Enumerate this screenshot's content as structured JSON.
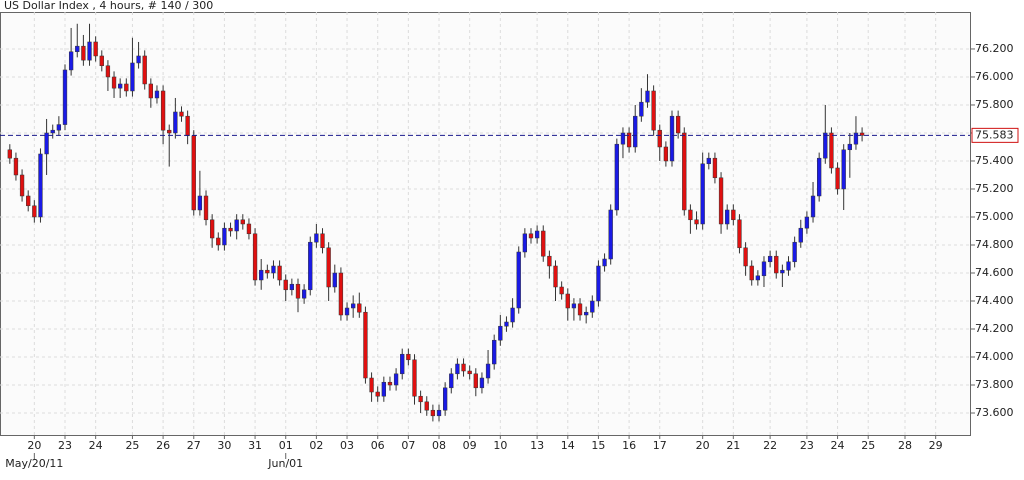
{
  "chart_data": {
    "type": "candlestick",
    "title": "US Dollar Index , 4 hours, # 140 / 300",
    "up_color": "#1a1ae6",
    "down_color": "#e01010",
    "grid": true,
    "ylim": [
      73.443,
      76.464
    ],
    "yticks": [
      {
        "value": 73.6,
        "label": "73.600"
      },
      {
        "value": 73.8,
        "label": "73.800"
      },
      {
        "value": 74.0,
        "label": "74.000"
      },
      {
        "value": 74.2,
        "label": "74.200"
      },
      {
        "value": 74.4,
        "label": "74.400"
      },
      {
        "value": 74.6,
        "label": "74.600"
      },
      {
        "value": 74.8,
        "label": "74.800"
      },
      {
        "value": 75.0,
        "label": "75.000"
      },
      {
        "value": 75.2,
        "label": "75.200"
      },
      {
        "value": 75.4,
        "label": "75.400"
      },
      {
        "value": 75.6,
        "label": "75.600"
      },
      {
        "value": 75.8,
        "label": "75.800"
      },
      {
        "value": 76.0,
        "label": "76.000"
      },
      {
        "value": 76.2,
        "label": "76.200"
      }
    ],
    "xlim": [
      -1.6,
      156.6
    ],
    "xticks": [
      {
        "value": 4,
        "label": "20"
      },
      {
        "value": 9,
        "label": "23"
      },
      {
        "value": 14,
        "label": "24"
      },
      {
        "value": 20,
        "label": "25"
      },
      {
        "value": 25,
        "label": "26"
      },
      {
        "value": 30,
        "label": "27"
      },
      {
        "value": 35,
        "label": "30"
      },
      {
        "value": 40,
        "label": "31"
      },
      {
        "value": 45,
        "label": "01"
      },
      {
        "value": 50,
        "label": "02"
      },
      {
        "value": 55,
        "label": "03"
      },
      {
        "value": 60,
        "label": "06"
      },
      {
        "value": 65,
        "label": "07"
      },
      {
        "value": 70,
        "label": "08"
      },
      {
        "value": 75,
        "label": "09"
      },
      {
        "value": 80,
        "label": "10"
      },
      {
        "value": 86,
        "label": "13"
      },
      {
        "value": 91,
        "label": "14"
      },
      {
        "value": 96,
        "label": "15"
      },
      {
        "value": 101,
        "label": "16"
      },
      {
        "value": 106,
        "label": "17"
      },
      {
        "value": 113,
        "label": "20"
      },
      {
        "value": 118,
        "label": "21"
      },
      {
        "value": 124,
        "label": "22"
      },
      {
        "value": 130,
        "label": "23"
      },
      {
        "value": 135,
        "label": "24"
      },
      {
        "value": 140,
        "label": "25"
      },
      {
        "value": 146,
        "label": "28"
      },
      {
        "value": 151,
        "label": "29"
      }
    ],
    "date_labels": [
      {
        "value": 4,
        "label": "May/20/11"
      },
      {
        "value": 45,
        "label": "Jun/01"
      }
    ],
    "last_price": {
      "value": 75.583,
      "label": "75.583"
    },
    "open": [
      75.48,
      75.42,
      75.3,
      75.15,
      75.08,
      75.0,
      75.45,
      75.6,
      75.62,
      75.66,
      76.05,
      76.18,
      76.22,
      76.12,
      76.25,
      76.15,
      76.08,
      76.0,
      75.92,
      75.95,
      75.9,
      76.1,
      76.15,
      75.95,
      75.85,
      75.9,
      75.62,
      75.6,
      75.75,
      75.72,
      75.58,
      75.05,
      75.15,
      74.98,
      74.85,
      74.8,
      74.92,
      74.9,
      74.98,
      74.95,
      74.88,
      74.55,
      74.62,
      74.6,
      74.65,
      74.55,
      74.48,
      74.52,
      74.42,
      74.48,
      74.82,
      74.88,
      74.78,
      74.5,
      74.6,
      74.3,
      74.35,
      74.38,
      74.32,
      73.85,
      73.75,
      73.72,
      73.82,
      73.8,
      73.88,
      74.02,
      73.98,
      73.72,
      73.68,
      73.62,
      73.58,
      73.62,
      73.78,
      73.88,
      73.95,
      73.9,
      73.88,
      73.78,
      73.85,
      73.95,
      74.12,
      74.22,
      74.25,
      74.35,
      74.75,
      74.88,
      74.85,
      74.9,
      74.72,
      74.65,
      74.5,
      74.45,
      74.35,
      74.38,
      74.3,
      74.32,
      74.4,
      74.65,
      74.7,
      75.05,
      75.52,
      75.6,
      75.5,
      75.72,
      75.82,
      75.9,
      75.62,
      75.5,
      75.4,
      75.72,
      75.6,
      75.05,
      74.98,
      74.95,
      75.38,
      75.42,
      75.28,
      74.95,
      75.05,
      74.98,
      74.78,
      74.65,
      74.55,
      74.58,
      74.68,
      74.72,
      74.6,
      74.62,
      74.68,
      74.82,
      74.92,
      75.0,
      75.15,
      75.42,
      75.6,
      75.35,
      75.2,
      75.48,
      75.52,
      75.6
    ],
    "high": [
      75.52,
      75.46,
      75.34,
      75.19,
      75.12,
      75.49,
      75.7,
      75.66,
      75.72,
      76.09,
      76.35,
      76.38,
      76.3,
      76.38,
      76.29,
      76.19,
      76.12,
      76.04,
      75.99,
      75.99,
      76.28,
      76.25,
      76.19,
      75.99,
      75.94,
      75.94,
      75.66,
      75.85,
      75.79,
      75.76,
      75.62,
      75.33,
      75.19,
      75.02,
      74.89,
      74.96,
      74.96,
      75.02,
      75.02,
      74.99,
      74.92,
      74.7,
      74.66,
      74.69,
      74.69,
      74.59,
      74.56,
      74.56,
      74.52,
      74.86,
      74.95,
      74.92,
      74.82,
      74.66,
      74.64,
      74.39,
      74.44,
      74.46,
      74.36,
      73.89,
      73.79,
      73.86,
      73.86,
      73.92,
      74.06,
      74.06,
      74.02,
      73.76,
      73.72,
      73.66,
      73.66,
      73.82,
      73.92,
      73.99,
      73.99,
      73.94,
      73.92,
      73.89,
      74.05,
      74.16,
      74.3,
      74.29,
      74.42,
      74.79,
      74.92,
      74.92,
      74.94,
      74.94,
      74.76,
      74.69,
      74.54,
      74.49,
      74.42,
      74.42,
      74.36,
      74.44,
      74.69,
      74.74,
      75.09,
      75.56,
      75.64,
      75.64,
      75.8,
      75.92,
      76.02,
      75.94,
      75.66,
      75.54,
      75.76,
      75.76,
      75.64,
      75.09,
      75.04,
      75.46,
      75.46,
      75.46,
      75.32,
      75.09,
      75.09,
      75.02,
      74.82,
      74.69,
      74.62,
      74.72,
      74.76,
      74.76,
      74.66,
      74.72,
      74.86,
      74.98,
      75.04,
      75.25,
      75.46,
      75.8,
      75.64,
      75.39,
      75.52,
      75.6,
      75.72,
      75.64
    ],
    "low": [
      75.38,
      75.26,
      75.11,
      75.04,
      74.96,
      74.96,
      75.3,
      75.56,
      75.58,
      75.62,
      76.01,
      76.14,
      76.08,
      76.08,
      76.11,
      76.04,
      75.9,
      75.85,
      75.85,
      75.86,
      75.86,
      76.06,
      75.91,
      75.78,
      75.81,
      75.52,
      75.36,
      75.56,
      75.68,
      75.52,
      75.01,
      75.01,
      74.94,
      74.78,
      74.76,
      74.76,
      74.86,
      74.84,
      74.91,
      74.84,
      74.51,
      74.48,
      74.56,
      74.56,
      74.51,
      74.4,
      74.44,
      74.32,
      74.38,
      74.44,
      74.78,
      74.74,
      74.4,
      74.46,
      74.26,
      74.26,
      74.28,
      74.28,
      73.81,
      73.68,
      73.68,
      73.68,
      73.76,
      73.76,
      73.84,
      73.94,
      73.66,
      73.6,
      73.58,
      73.54,
      73.54,
      73.58,
      73.74,
      73.84,
      73.86,
      73.84,
      73.72,
      73.74,
      73.81,
      73.91,
      74.08,
      74.18,
      74.21,
      74.31,
      74.71,
      74.81,
      74.81,
      74.68,
      74.56,
      74.4,
      74.41,
      74.26,
      74.26,
      74.26,
      74.24,
      74.28,
      74.36,
      74.61,
      74.66,
      75.01,
      75.42,
      75.46,
      75.46,
      75.68,
      75.78,
      75.58,
      75.4,
      75.36,
      75.36,
      75.56,
      75.01,
      74.88,
      74.91,
      74.91,
      75.34,
      75.24,
      74.88,
      74.91,
      74.94,
      74.74,
      74.58,
      74.51,
      74.51,
      74.5,
      74.64,
      74.56,
      74.5,
      74.58,
      74.64,
      74.78,
      74.88,
      74.96,
      75.11,
      75.38,
      75.31,
      75.16,
      75.05,
      75.28,
      75.48,
      75.54
    ],
    "close": [
      75.42,
      75.3,
      75.15,
      75.08,
      75.0,
      75.45,
      75.6,
      75.62,
      75.66,
      76.05,
      76.18,
      76.22,
      76.12,
      76.25,
      76.15,
      76.08,
      76.0,
      75.92,
      75.95,
      75.9,
      76.1,
      76.15,
      75.95,
      75.85,
      75.9,
      75.62,
      75.6,
      75.75,
      75.72,
      75.58,
      75.05,
      75.15,
      74.98,
      74.85,
      74.8,
      74.92,
      74.9,
      74.98,
      74.95,
      74.88,
      74.55,
      74.62,
      74.6,
      74.65,
      74.55,
      74.48,
      74.52,
      74.42,
      74.48,
      74.82,
      74.88,
      74.78,
      74.5,
      74.6,
      74.3,
      74.35,
      74.38,
      74.32,
      73.85,
      73.75,
      73.72,
      73.82,
      73.8,
      73.88,
      74.02,
      73.98,
      73.72,
      73.68,
      73.62,
      73.58,
      73.62,
      73.78,
      73.88,
      73.95,
      73.9,
      73.88,
      73.78,
      73.85,
      73.95,
      74.12,
      74.22,
      74.25,
      74.35,
      74.75,
      74.88,
      74.85,
      74.9,
      74.72,
      74.65,
      74.5,
      74.45,
      74.35,
      74.38,
      74.3,
      74.32,
      74.4,
      74.65,
      74.7,
      75.05,
      75.52,
      75.6,
      75.5,
      75.72,
      75.82,
      75.9,
      75.62,
      75.5,
      75.4,
      75.72,
      75.6,
      75.05,
      74.98,
      74.95,
      75.38,
      75.42,
      75.28,
      74.95,
      75.05,
      74.98,
      74.78,
      74.65,
      74.55,
      74.58,
      74.68,
      74.72,
      74.6,
      74.62,
      74.68,
      74.82,
      74.92,
      75.0,
      75.15,
      75.42,
      75.6,
      75.35,
      75.2,
      75.48,
      75.52,
      75.6,
      75.583
    ]
  }
}
